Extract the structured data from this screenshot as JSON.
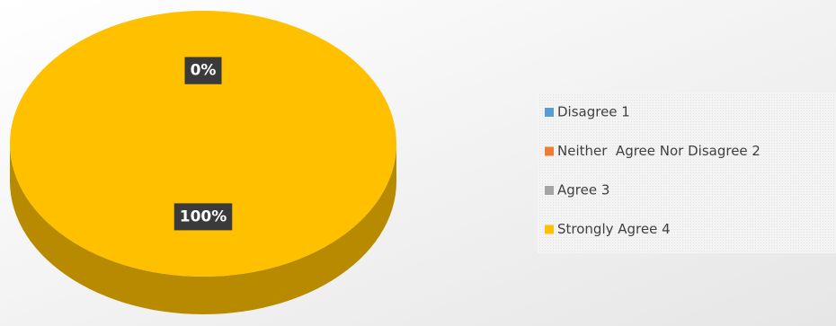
{
  "chart_data": {
    "type": "pie",
    "categories": [
      "Disagree 1",
      "Neither  Agree Nor Disagree 2",
      "Agree 3",
      "Strongly Agree 4"
    ],
    "values": [
      0,
      0,
      0,
      100
    ],
    "value_labels": [
      "0%",
      "0%",
      "0%",
      "100%"
    ],
    "colors": [
      "#5b9bd5",
      "#ed7d31",
      "#a5a5a5",
      "#ffc000"
    ],
    "legend": "right"
  }
}
